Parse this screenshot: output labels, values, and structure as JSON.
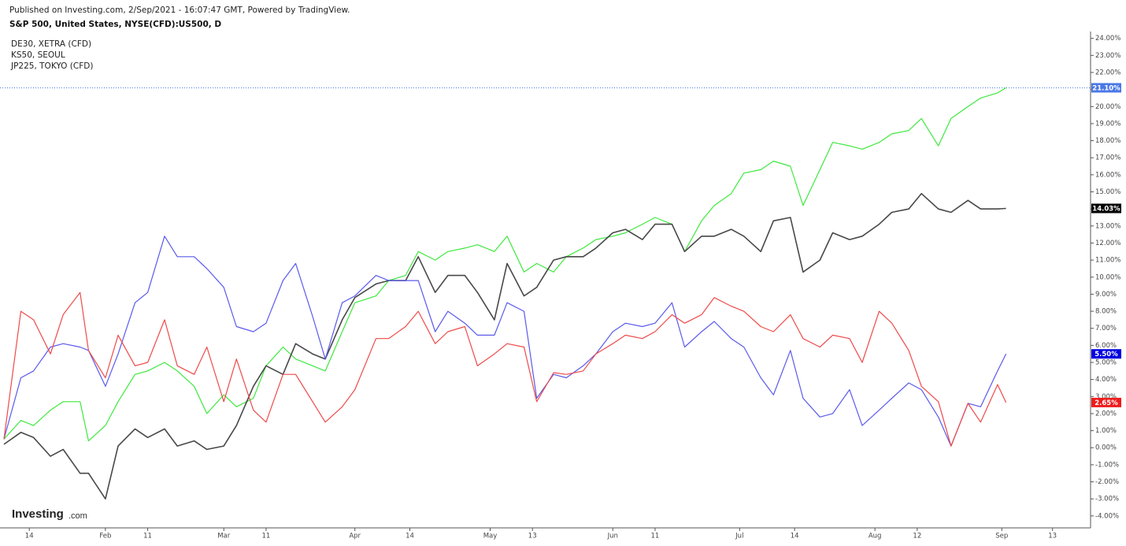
{
  "header": {
    "published": "Published on Investing.com, 2/Sep/2021 - 16:07:47 GMT, Powered by TradingView."
  },
  "logo": {
    "name": "Investing",
    "suffix": ".com"
  },
  "chart_data": {
    "type": "line",
    "x": [
      "2021-01-08",
      "2021-01-12",
      "2021-01-15",
      "2021-01-19",
      "2021-01-22",
      "2021-01-26",
      "2021-01-28",
      "2021-02-01",
      "2021-02-04",
      "2021-02-08",
      "2021-02-11",
      "2021-02-15",
      "2021-02-18",
      "2021-02-22",
      "2021-02-25",
      "2021-03-01",
      "2021-03-04",
      "2021-03-08",
      "2021-03-11",
      "2021-03-15",
      "2021-03-18",
      "2021-03-22",
      "2021-03-25",
      "2021-03-29",
      "2021-04-01",
      "2021-04-06",
      "2021-04-09",
      "2021-04-13",
      "2021-04-16",
      "2021-04-20",
      "2021-04-23",
      "2021-04-27",
      "2021-04-30",
      "2021-05-04",
      "2021-05-07",
      "2021-05-11",
      "2021-05-14",
      "2021-05-18",
      "2021-05-21",
      "2021-05-25",
      "2021-05-28",
      "2021-06-01",
      "2021-06-04",
      "2021-06-08",
      "2021-06-11",
      "2021-06-15",
      "2021-06-18",
      "2021-06-22",
      "2021-06-25",
      "2021-06-29",
      "2021-07-02",
      "2021-07-06",
      "2021-07-09",
      "2021-07-13",
      "2021-07-16",
      "2021-07-20",
      "2021-07-23",
      "2021-07-27",
      "2021-07-30",
      "2021-08-03",
      "2021-08-06",
      "2021-08-10",
      "2021-08-13",
      "2021-08-17",
      "2021-08-20",
      "2021-08-24",
      "2021-08-27",
      "2021-08-31",
      "2021-09-02"
    ],
    "xlim": [
      "2021-01-08",
      "2021-09-22"
    ],
    "xticks": [
      {
        "value": "2021-01-14",
        "label": "14"
      },
      {
        "value": "2021-02-01",
        "label": "Feb"
      },
      {
        "value": "2021-02-11",
        "label": "11"
      },
      {
        "value": "2021-03-01",
        "label": "Mar"
      },
      {
        "value": "2021-03-11",
        "label": "11"
      },
      {
        "value": "2021-04-01",
        "label": "Apr"
      },
      {
        "value": "2021-04-14",
        "label": "14"
      },
      {
        "value": "2021-05-03",
        "label": "May"
      },
      {
        "value": "2021-05-13",
        "label": "13"
      },
      {
        "value": "2021-06-01",
        "label": "Jun"
      },
      {
        "value": "2021-06-11",
        "label": "11"
      },
      {
        "value": "2021-07-01",
        "label": "Jul"
      },
      {
        "value": "2021-07-14",
        "label": "14"
      },
      {
        "value": "2021-08-02",
        "label": "Aug"
      },
      {
        "value": "2021-08-12",
        "label": "12"
      },
      {
        "value": "2021-09-01",
        "label": "Sep"
      },
      {
        "value": "2021-09-13",
        "label": "13"
      }
    ],
    "ylim": [
      -4.7,
      24.4
    ],
    "yticks": [
      {
        "value": -4,
        "label": "-4.00%"
      },
      {
        "value": -3,
        "label": "-3.00%"
      },
      {
        "value": -2,
        "label": "-2.00%"
      },
      {
        "value": -1,
        "label": "-1.00%"
      },
      {
        "value": 0,
        "label": "0.00%"
      },
      {
        "value": 1,
        "label": "1.00%"
      },
      {
        "value": 2,
        "label": "2.00%"
      },
      {
        "value": 3,
        "label": "3.00%"
      },
      {
        "value": 4,
        "label": "4.00%"
      },
      {
        "value": 5,
        "label": "5.00%"
      },
      {
        "value": 6,
        "label": "6.00%"
      },
      {
        "value": 7,
        "label": "7.00%"
      },
      {
        "value": 8,
        "label": "8.00%"
      },
      {
        "value": 9,
        "label": "9.00%"
      },
      {
        "value": 10,
        "label": "10.00%"
      },
      {
        "value": 11,
        "label": "11.00%"
      },
      {
        "value": 12,
        "label": "12.00%"
      },
      {
        "value": 13,
        "label": "13.00%"
      },
      {
        "value": 14,
        "label": "14.00%"
      },
      {
        "value": 15,
        "label": "15.00%"
      },
      {
        "value": 16,
        "label": "16.00%"
      },
      {
        "value": 17,
        "label": "17.00%"
      },
      {
        "value": 18,
        "label": "18.00%"
      },
      {
        "value": 19,
        "label": "19.00%"
      },
      {
        "value": 20,
        "label": "20.00%"
      },
      {
        "value": 21,
        "label": "21.00%"
      },
      {
        "value": 22,
        "label": "22.00%"
      },
      {
        "value": 23,
        "label": "23.00%"
      },
      {
        "value": 24,
        "label": "24.00%"
      }
    ],
    "grid": false,
    "series": [
      {
        "name": "S&P 500, United States, NYSE(CFD):US500, D",
        "color": "#3ee83e",
        "label_color": "#4a78e6",
        "price_line": true,
        "last_value_label": "21.10%",
        "values": [
          0.5,
          1.6,
          1.3,
          2.2,
          2.7,
          2.7,
          0.4,
          1.3,
          2.7,
          4.3,
          4.5,
          5.0,
          4.5,
          3.6,
          2.0,
          3.1,
          2.4,
          2.9,
          4.8,
          5.9,
          5.2,
          4.8,
          4.5,
          6.8,
          8.5,
          8.9,
          9.8,
          10.1,
          11.5,
          11.0,
          11.5,
          11.7,
          11.9,
          11.5,
          12.4,
          10.3,
          10.8,
          10.3,
          11.2,
          11.7,
          12.2,
          12.4,
          12.6,
          13.1,
          13.5,
          13.1,
          11.5,
          13.3,
          14.2,
          14.9,
          16.1,
          16.3,
          16.8,
          16.5,
          14.2,
          16.3,
          17.9,
          17.7,
          17.5,
          17.9,
          18.4,
          18.6,
          19.3,
          17.7,
          19.3,
          20.0,
          20.5,
          20.8,
          21.1
        ]
      },
      {
        "name": "DE30, XETRA (CFD)",
        "color": "#484848",
        "label_color": "#000000",
        "price_line": false,
        "last_value_label": "14.03%",
        "values": [
          0.2,
          0.9,
          0.6,
          -0.5,
          -0.1,
          -1.5,
          -1.5,
          -3.0,
          0.1,
          1.1,
          0.6,
          1.1,
          0.1,
          0.4,
          -0.1,
          0.1,
          1.3,
          3.6,
          4.8,
          4.3,
          6.1,
          5.5,
          5.2,
          7.5,
          8.8,
          9.6,
          9.8,
          9.8,
          11.2,
          9.1,
          10.1,
          10.1,
          9.1,
          7.5,
          10.8,
          8.9,
          9.4,
          11.0,
          11.2,
          11.2,
          11.7,
          12.6,
          12.8,
          12.2,
          13.1,
          13.1,
          11.5,
          12.4,
          12.4,
          12.8,
          12.4,
          11.5,
          13.3,
          13.5,
          10.3,
          11.0,
          12.6,
          12.2,
          12.4,
          13.1,
          13.8,
          14.0,
          14.9,
          14.0,
          13.8,
          14.5,
          14.0,
          14.0,
          14.03
        ]
      },
      {
        "name": "KS50, SEOUL",
        "color": "#5a5aec",
        "label_color": "#0000e0",
        "price_line": false,
        "last_value_label": "5.50%",
        "values": [
          0.5,
          4.1,
          4.5,
          5.9,
          6.1,
          5.9,
          5.7,
          3.6,
          5.5,
          8.5,
          9.1,
          12.4,
          11.2,
          11.2,
          10.5,
          9.4,
          7.1,
          6.8,
          7.3,
          9.8,
          10.8,
          7.7,
          5.2,
          8.5,
          8.9,
          10.1,
          9.8,
          9.8,
          9.8,
          6.8,
          8.0,
          7.3,
          6.6,
          6.6,
          8.5,
          8.0,
          2.9,
          4.3,
          4.1,
          4.8,
          5.5,
          6.8,
          7.3,
          7.1,
          7.3,
          8.5,
          5.9,
          6.8,
          7.4,
          6.4,
          5.9,
          4.1,
          3.1,
          5.7,
          2.9,
          1.8,
          2.0,
          3.4,
          1.3,
          2.2,
          2.9,
          3.8,
          3.4,
          1.8,
          0.1,
          2.6,
          2.4,
          4.5,
          5.5
        ]
      },
      {
        "name": "JP225, TOKYO (CFD)",
        "color": "#ee4a4a",
        "label_color": "#ee1c1c",
        "price_line": false,
        "last_value_label": "2.65%",
        "values": [
          0.5,
          8.0,
          7.5,
          5.5,
          7.8,
          9.1,
          5.7,
          4.1,
          6.6,
          4.8,
          5.0,
          7.5,
          4.8,
          4.3,
          5.9,
          2.7,
          5.2,
          2.2,
          1.5,
          4.3,
          4.3,
          2.7,
          1.5,
          2.4,
          3.4,
          6.4,
          6.4,
          7.1,
          8.0,
          6.1,
          6.8,
          7.1,
          4.8,
          5.5,
          6.1,
          5.9,
          2.7,
          4.4,
          4.3,
          4.5,
          5.5,
          6.1,
          6.6,
          6.4,
          6.8,
          7.8,
          7.3,
          7.8,
          8.8,
          8.3,
          8.0,
          7.1,
          6.8,
          7.8,
          6.4,
          5.9,
          6.6,
          6.4,
          5.0,
          8.0,
          7.3,
          5.7,
          3.6,
          2.7,
          0.1,
          2.6,
          1.5,
          3.7,
          2.65
        ]
      }
    ]
  }
}
